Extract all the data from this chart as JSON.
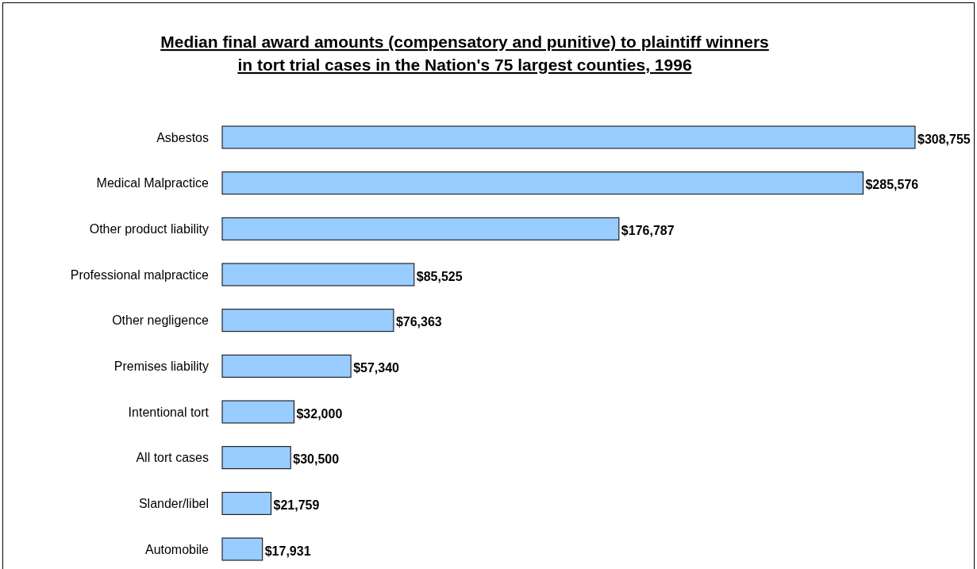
{
  "chart_data": {
    "type": "bar",
    "orientation": "horizontal",
    "title": "Median final award amounts (compensatory and punitive) to plaintiff winners in tort trial cases in the Nation's 75 largest counties, 1996",
    "categories": [
      "Asbestos",
      "Medical Malpractice",
      "Other product liability",
      "Professional malpractice",
      "Other negligence",
      "Premises liability",
      "Intentional tort",
      "All tort cases",
      "Slander/libel",
      "Automobile"
    ],
    "values": [
      308755,
      285576,
      176787,
      85525,
      76363,
      57340,
      32000,
      30500,
      21759,
      17931
    ],
    "value_labels": [
      "$308,755",
      "$285,576",
      "$176,787",
      "$85,525",
      "$76,363",
      "$57,340",
      "$32,000",
      "$30,500",
      "$21,759",
      "$17,931"
    ],
    "color": "#99ccff"
  }
}
